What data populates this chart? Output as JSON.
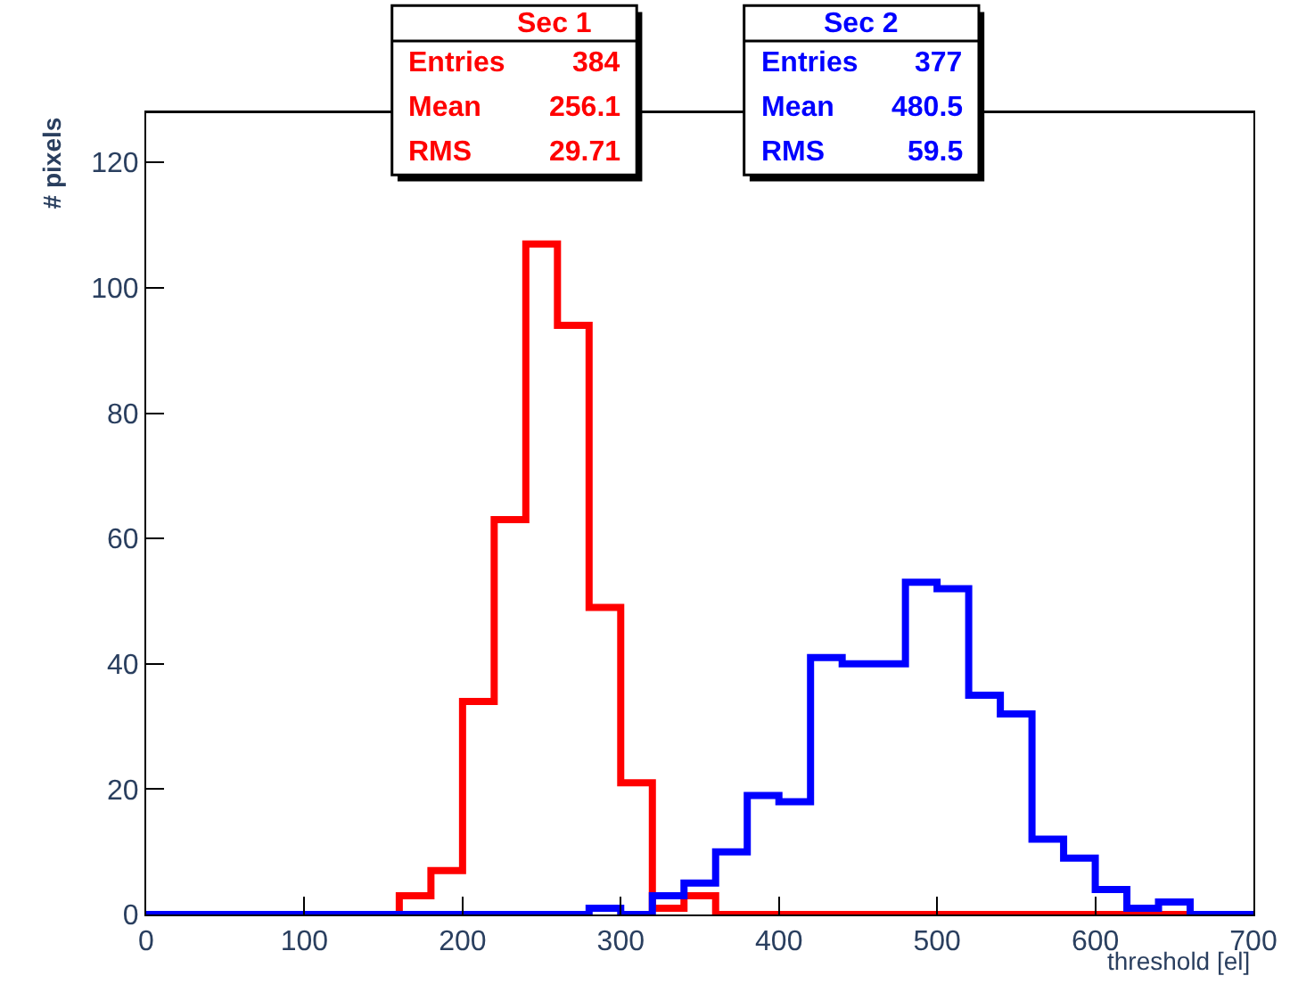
{
  "chart_data": {
    "type": "histogram",
    "xlabel": "threshold [el]",
    "ylabel": "# pixels",
    "bins": [
      0,
      20,
      40,
      60,
      80,
      100,
      120,
      140,
      160,
      180,
      200,
      220,
      240,
      260,
      280,
      300,
      320,
      340,
      360,
      380,
      400,
      420,
      440,
      460,
      480,
      500,
      520,
      540,
      560,
      580,
      600,
      620,
      640,
      660,
      680,
      700
    ],
    "series": [
      {
        "name": "Sec 1",
        "color": "#ff0000",
        "values": [
          0,
          0,
          0,
          0,
          0,
          0,
          0,
          0,
          3,
          7,
          34,
          63,
          107,
          94,
          49,
          21,
          1,
          3,
          0,
          0,
          0,
          0,
          0,
          0,
          0,
          0,
          0,
          0,
          0,
          0,
          0,
          0,
          0,
          0,
          0
        ]
      },
      {
        "name": "Sec 2",
        "color": "#0000ff",
        "values": [
          0,
          0,
          0,
          0,
          0,
          0,
          0,
          0,
          0,
          0,
          0,
          0,
          0,
          0,
          1,
          0,
          3,
          5,
          10,
          19,
          18,
          41,
          40,
          40,
          53,
          52,
          35,
          32,
          12,
          9,
          4,
          1,
          2,
          0,
          0
        ]
      }
    ],
    "annotations": [
      "Entries 384",
      "Mean 256.1",
      "RMS 29.71",
      "Entries 377",
      "Mean 480.5",
      "RMS 59.5"
    ],
    "xlim": [
      0,
      700
    ],
    "xticks": [
      0,
      100,
      200,
      300,
      400,
      500,
      600,
      700
    ],
    "ylim": [
      0,
      128
    ],
    "yticks": [
      0,
      20,
      40,
      60,
      80,
      100,
      120
    ],
    "legend": false
  }
}
